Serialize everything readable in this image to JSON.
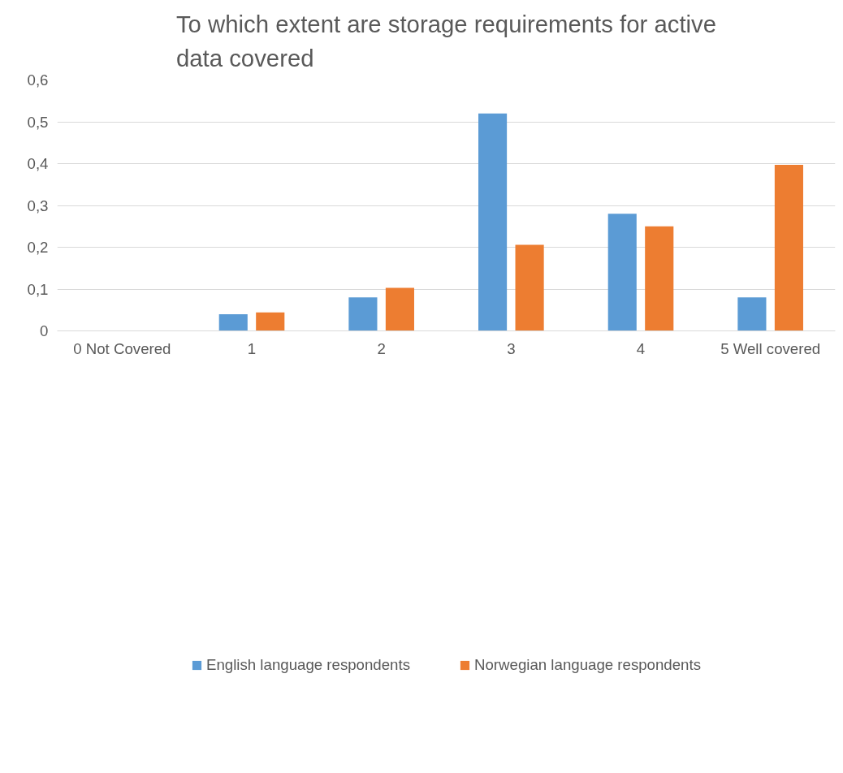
{
  "chart_data": {
    "type": "bar",
    "title": "To which extent are storage requirements for active data covered",
    "categories": [
      "0 Not Covered",
      "1",
      "2",
      "3",
      "4",
      "5 Well covered"
    ],
    "series": [
      {
        "name": "English language respondents",
        "color": "#5b9bd5",
        "values": [
          0,
          0.04,
          0.08,
          0.52,
          0.28,
          0.08
        ]
      },
      {
        "name": "Norwegian language respondents",
        "color": "#ed7d31",
        "values": [
          0,
          0.044,
          0.103,
          0.206,
          0.25,
          0.397
        ]
      }
    ],
    "ylim": [
      0,
      0.6
    ],
    "yticks": [
      {
        "value": 0,
        "label": "0"
      },
      {
        "value": 0.1,
        "label": "0,1"
      },
      {
        "value": 0.2,
        "label": "0,2"
      },
      {
        "value": 0.3,
        "label": "0,3"
      },
      {
        "value": 0.4,
        "label": "0,4"
      },
      {
        "value": 0.5,
        "label": "0,5"
      },
      {
        "value": 0.6,
        "label": "0,6"
      }
    ],
    "grid": "y",
    "legend": "bottom"
  }
}
